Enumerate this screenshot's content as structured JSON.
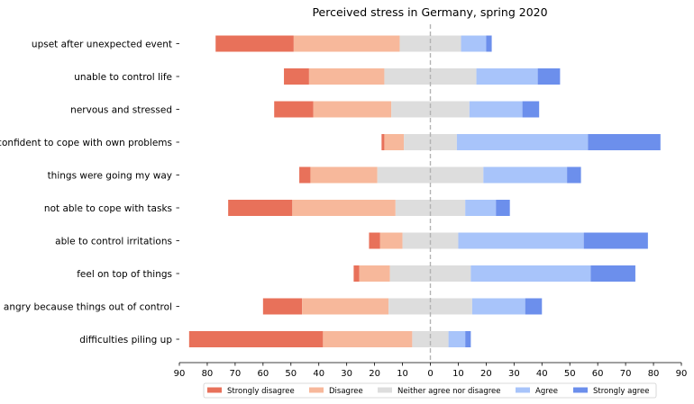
{
  "chart_data": {
    "type": "bar",
    "orientation": "horizontal-diverging-stacked",
    "title": "Perceived stress in Germany, spring 2020",
    "xlabel": "",
    "ylabel": "",
    "xlim": [
      -90,
      90
    ],
    "xticks": [
      -90,
      -80,
      -70,
      -60,
      -50,
      -40,
      -30,
      -20,
      -10,
      0,
      10,
      20,
      30,
      40,
      50,
      60,
      70,
      80,
      90
    ],
    "xtick_labels": [
      "90",
      "80",
      "70",
      "60",
      "50",
      "40",
      "30",
      "20",
      "10",
      "0",
      "10",
      "20",
      "30",
      "40",
      "50",
      "60",
      "70",
      "80",
      "90"
    ],
    "center_line": 0,
    "legend_position": "bottom",
    "categories": [
      "upset after unexpected event",
      "unable to control life",
      "nervous and stressed",
      "confident to cope with own problems",
      "things were going my way",
      "not able to cope with tasks",
      "able to control irritations",
      "feel on top of things",
      "angry because things out of control",
      "difficulties piling up"
    ],
    "series": [
      {
        "name": "Strongly disagree",
        "color": "#e8715a",
        "values": [
          28.0,
          9.0,
          14.0,
          1.0,
          4.0,
          23.0,
          4.0,
          2.0,
          14.0,
          48.0
        ]
      },
      {
        "name": "Disagree",
        "color": "#f7b89b",
        "values": [
          38.0,
          27.0,
          28.0,
          7.0,
          24.0,
          37.0,
          8.0,
          11.0,
          31.0,
          32.0
        ]
      },
      {
        "name": "Neither agree nor disagree",
        "color": "#dddddd",
        "values": [
          22.0,
          33.0,
          28.0,
          19.0,
          38.0,
          25.0,
          20.0,
          29.0,
          30.0,
          13.0
        ]
      },
      {
        "name": "Agree",
        "color": "#a8c4fa",
        "values": [
          9.0,
          22.0,
          19.0,
          47.0,
          30.0,
          11.0,
          45.0,
          43.0,
          19.0,
          6.0
        ]
      },
      {
        "name": "Strongly agree",
        "color": "#6c8fec",
        "values": [
          2.0,
          8.0,
          6.0,
          26.0,
          5.0,
          5.0,
          23.0,
          16.0,
          6.0,
          2.0
        ]
      }
    ],
    "neutral_series_index": 2
  }
}
